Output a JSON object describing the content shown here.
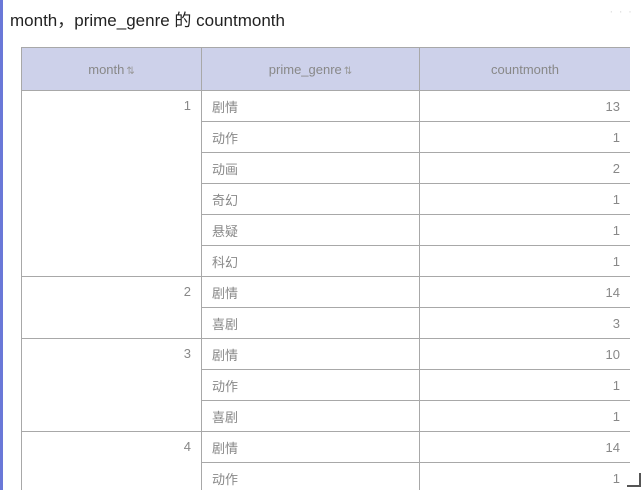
{
  "title": "month，prime_genre 的 countmonth",
  "more_label": "· · ·",
  "columns": [
    {
      "label": "month",
      "sort_icon": "sort-icon"
    },
    {
      "label": "prime_genre",
      "sort_icon": "sort-icon"
    },
    {
      "label": "countmonth"
    }
  ],
  "sort_glyph": "⇅",
  "groups": [
    {
      "month": "1",
      "rows": [
        {
          "genre": "剧情",
          "count": "13"
        },
        {
          "genre": "动作",
          "count": "1"
        },
        {
          "genre": "动画",
          "count": "2"
        },
        {
          "genre": "奇幻",
          "count": "1"
        },
        {
          "genre": "悬疑",
          "count": "1"
        },
        {
          "genre": "科幻",
          "count": "1"
        }
      ]
    },
    {
      "month": "2",
      "rows": [
        {
          "genre": "剧情",
          "count": "14"
        },
        {
          "genre": "喜剧",
          "count": "3"
        }
      ]
    },
    {
      "month": "3",
      "rows": [
        {
          "genre": "剧情",
          "count": "10"
        },
        {
          "genre": "动作",
          "count": "1"
        },
        {
          "genre": "喜剧",
          "count": "1"
        }
      ]
    },
    {
      "month": "4",
      "rows": [
        {
          "genre": "剧情",
          "count": "14"
        },
        {
          "genre": "动作",
          "count": "1"
        }
      ]
    }
  ]
}
